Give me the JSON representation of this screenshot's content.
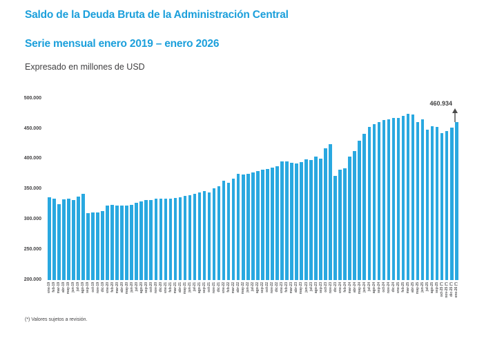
{
  "page": {
    "title_line1": "Saldo de la Deuda Bruta de la Administración Central",
    "title_line2": "Serie mensual enero 2019 – enero 2026",
    "subtitle": "Expresado en millones de USD",
    "footnote": "(*) Valores sujetos a revisión."
  },
  "colors": {
    "title_blue": "#1b9fdb",
    "bar_blue": "#29a8e0",
    "text_dark": "#414042",
    "axis_text": "#58595b",
    "arrow_gray": "#4a4a4a"
  },
  "chart_data": {
    "type": "bar",
    "title": "Saldo de la Deuda Bruta de la Administración Central",
    "subtitle": "Serie mensual enero 2019 – enero 2026",
    "units": "millones de USD",
    "xlabel": "",
    "ylabel": "",
    "ylim": [
      200000,
      500000
    ],
    "ytick_step": 50000,
    "ytick_labels": [
      "200.000",
      "250.000",
      "300.000",
      "350.000",
      "400.000",
      "450.000",
      "500.000"
    ],
    "grid": false,
    "legend": false,
    "annotation": {
      "text": "460.934",
      "target_category": "ene-26 (*)"
    },
    "categories": [
      "ene-19",
      "feb-19",
      "mar-19",
      "abr-19",
      "may-19",
      "jun-19",
      "jul-19",
      "ago-19",
      "sep-19",
      "oct-19",
      "nov-19",
      "dic-19",
      "ene-20",
      "feb-20",
      "mar-20",
      "abr-20",
      "may-20",
      "jun-20",
      "jul-20",
      "ago-20",
      "sep-20",
      "oct-20",
      "nov-20",
      "dic-20",
      "ene-21",
      "feb-21",
      "mar-21",
      "abr-21",
      "may-21",
      "jun-21",
      "jul-21",
      "ago-21",
      "sep-21",
      "oct-21",
      "nov-21",
      "dic-21",
      "ene-22",
      "feb-22",
      "mar-22",
      "abr-22",
      "may-22",
      "jun-22",
      "jul-22",
      "ago-22",
      "sep-22",
      "oct-22",
      "nov-22",
      "dic-22",
      "ene-23",
      "feb-23",
      "mar-23",
      "abr-23",
      "may-23",
      "jun-23",
      "jul-23",
      "ago-23",
      "sep-23",
      "oct-23",
      "nov-23",
      "dic-23",
      "ene-24",
      "feb-24",
      "mar-24",
      "abr-24",
      "may-24",
      "jun-24",
      "jul-24",
      "ago-24",
      "sep-24",
      "oct-24",
      "nov-24",
      "dic-24",
      "ene-25",
      "feb-25",
      "mar-25",
      "abr-25",
      "may-25",
      "jun-25",
      "jul-25",
      "ago-25",
      "sep-25",
      "oct-25 (*)",
      "nov-25 (*)",
      "dic-25 (*)",
      "ene-26 (*)"
    ],
    "values": [
      336500,
      334000,
      325500,
      333000,
      334500,
      332000,
      338000,
      342500,
      310000,
      312000,
      311500,
      313500,
      323000,
      324000,
      323500,
      323000,
      323500,
      324000,
      327500,
      330000,
      332000,
      332500,
      334000,
      335000,
      334500,
      335000,
      335500,
      337000,
      339000,
      340500,
      342500,
      345000,
      346500,
      345000,
      351000,
      355000,
      364000,
      361000,
      367000,
      376000,
      374500,
      376000,
      377500,
      380000,
      382000,
      383000,
      386000,
      388000,
      396500,
      395500,
      394000,
      392500,
      394500,
      399500,
      398000,
      403500,
      401000,
      417500,
      425000,
      372000,
      382000,
      385000,
      403500,
      412500,
      430000,
      442000,
      452500,
      458000,
      460500,
      464000,
      465000,
      467500,
      468000,
      471000,
      474500,
      473500,
      461000,
      465000,
      448000,
      454500,
      453000,
      443000,
      446000,
      451500,
      460934
    ]
  }
}
